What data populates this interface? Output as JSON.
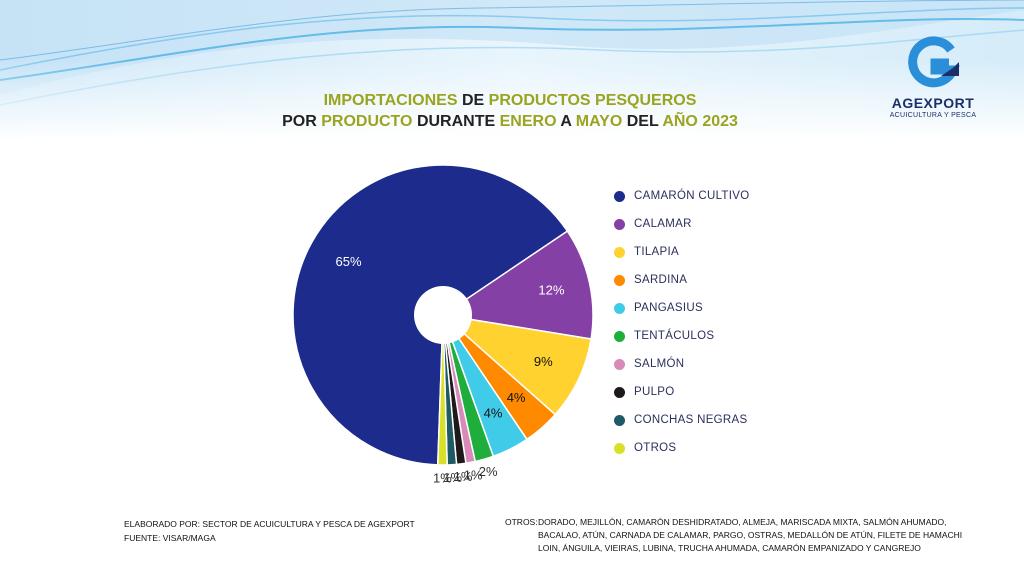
{
  "title": {
    "line1": [
      {
        "text": "IMPORTACIONES ",
        "hl": true
      },
      {
        "text": "DE ",
        "hl": false
      },
      {
        "text": "PRODUCTOS PESQUEROS",
        "hl": true
      }
    ],
    "line2": [
      {
        "text": "POR ",
        "hl": false
      },
      {
        "text": "PRODUCTO ",
        "hl": true
      },
      {
        "text": "DURANTE ",
        "hl": false
      },
      {
        "text": "ENERO ",
        "hl": true
      },
      {
        "text": "A ",
        "hl": false
      },
      {
        "text": "MAYO ",
        "hl": true
      },
      {
        "text": "DEL ",
        "hl": false
      },
      {
        "text": "AÑO 2023",
        "hl": true
      }
    ]
  },
  "logo": {
    "name": "AGEXPORT",
    "subtitle": "ACUICULTURA Y PESCA"
  },
  "chart_data": {
    "type": "pie",
    "donut_hole": true,
    "legend_position": "right",
    "slices": [
      {
        "label": "CAMARÓN CULTIVO",
        "value": 65,
        "display": "65%",
        "color": "#1c2b8c"
      },
      {
        "label": "CALAMAR",
        "value": 12,
        "display": "12%",
        "color": "#8540a5"
      },
      {
        "label": "TILAPIA",
        "value": 9,
        "display": "9%",
        "color": "#ffd230"
      },
      {
        "label": "SARDINA",
        "value": 4,
        "display": "4%",
        "color": "#ff8a00"
      },
      {
        "label": "PANGASIUS",
        "value": 4,
        "display": "4%",
        "color": "#40cbe8"
      },
      {
        "label": "TENTÁCULOS",
        "value": 2,
        "display": "2%",
        "color": "#1fae3c"
      },
      {
        "label": "SALMÓN",
        "value": 1,
        "display": "1%",
        "color": "#d88ab8"
      },
      {
        "label": "PULPO",
        "value": 1,
        "display": "1%",
        "color": "#1e1a1c"
      },
      {
        "label": "CONCHAS NEGRAS",
        "value": 1,
        "display": "1%",
        "color": "#1e5966"
      },
      {
        "label": "OTROS",
        "value": 1,
        "display": "1%",
        "color": "#d8e02a"
      }
    ]
  },
  "footer": {
    "elaborado": "ELABORADO POR: SECTOR DE ACUICULTURA Y PESCA DE AGEXPORT",
    "fuente": "FUENTE: VISAR/MAGA",
    "otros_label": "OTROS:",
    "otros_text": "DORADO, MEJILLÓN, CAMARÓN DESHIDRATADO, ALMEJA, MARISCADA MIXTA, SALMÓN AHUMADO, BACALAO, ATÚN, CARNADA DE CALAMAR, PARGO, OSTRAS, MEDALLÓN DE ATÚN, FILETE DE HAMACHI LOIN, ÁNGUILA, VIEIRAS, LUBINA, TRUCHA AHUMADA, CAMARÓN EMPANIZADO Y CANGREJO"
  }
}
